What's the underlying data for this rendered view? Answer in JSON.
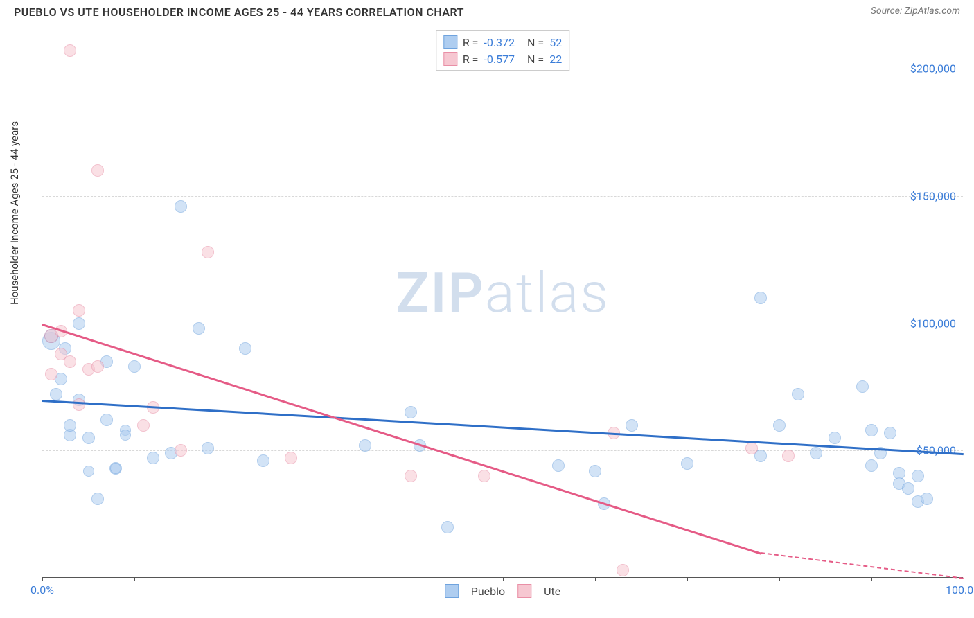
{
  "title": "PUEBLO VS UTE HOUSEHOLDER INCOME AGES 25 - 44 YEARS CORRELATION CHART",
  "source": "Source: ZipAtlas.com",
  "ylabel": "Householder Income Ages 25 - 44 years",
  "watermark_a": "ZIP",
  "watermark_b": "atlas",
  "chart": {
    "type": "scatter-correlation",
    "background_color": "#ffffff",
    "grid_color": "#d8d8d8",
    "axis_color": "#555555",
    "xlim": [
      0,
      100
    ],
    "ylim": [
      0,
      215000
    ],
    "xtick_positions": [
      0,
      10,
      20,
      30,
      40,
      50,
      60,
      70,
      80,
      90,
      100
    ],
    "xtick_labels_shown": {
      "0": "0.0%",
      "100": "100.0%"
    },
    "yticks": [
      50000,
      100000,
      150000,
      200000
    ],
    "ytick_labels": [
      "$50,000",
      "$100,000",
      "$150,000",
      "$200,000"
    ],
    "point_radius_min": 8,
    "point_radius_max": 14,
    "point_opacity": 0.55,
    "label_fontsize": 16,
    "label_color": "#3b7dd8",
    "title_fontsize": 16,
    "title_color": "#333333"
  },
  "series": [
    {
      "name": "Pueblo",
      "color_fill": "#aecdf0",
      "color_stroke": "#6fa3de",
      "line_color": "#2f6fc7",
      "R": "-0.372",
      "N": "52",
      "trend": {
        "x1": 0,
        "y1": 70000,
        "x2": 100,
        "y2": 49000
      },
      "points": [
        {
          "x": 1,
          "y": 93000,
          "r": 13
        },
        {
          "x": 1,
          "y": 95000,
          "r": 10
        },
        {
          "x": 1.5,
          "y": 72000,
          "r": 9
        },
        {
          "x": 2,
          "y": 78000,
          "r": 9
        },
        {
          "x": 2.5,
          "y": 90000,
          "r": 9
        },
        {
          "x": 3,
          "y": 56000,
          "r": 9
        },
        {
          "x": 3,
          "y": 60000,
          "r": 9
        },
        {
          "x": 4,
          "y": 100000,
          "r": 9
        },
        {
          "x": 4,
          "y": 70000,
          "r": 9
        },
        {
          "x": 5,
          "y": 55000,
          "r": 9
        },
        {
          "x": 5,
          "y": 42000,
          "r": 8
        },
        {
          "x": 6,
          "y": 31000,
          "r": 9
        },
        {
          "x": 7,
          "y": 85000,
          "r": 9
        },
        {
          "x": 7,
          "y": 62000,
          "r": 9
        },
        {
          "x": 8,
          "y": 43000,
          "r": 9
        },
        {
          "x": 8,
          "y": 43000,
          "r": 8
        },
        {
          "x": 9,
          "y": 58000,
          "r": 8
        },
        {
          "x": 9,
          "y": 56000,
          "r": 8
        },
        {
          "x": 10,
          "y": 83000,
          "r": 9
        },
        {
          "x": 12,
          "y": 47000,
          "r": 9
        },
        {
          "x": 14,
          "y": 49000,
          "r": 9
        },
        {
          "x": 15,
          "y": 146000,
          "r": 9
        },
        {
          "x": 17,
          "y": 98000,
          "r": 9
        },
        {
          "x": 18,
          "y": 51000,
          "r": 9
        },
        {
          "x": 22,
          "y": 90000,
          "r": 9
        },
        {
          "x": 24,
          "y": 46000,
          "r": 9
        },
        {
          "x": 35,
          "y": 52000,
          "r": 9
        },
        {
          "x": 40,
          "y": 65000,
          "r": 9
        },
        {
          "x": 41,
          "y": 52000,
          "r": 9
        },
        {
          "x": 44,
          "y": 20000,
          "r": 9
        },
        {
          "x": 56,
          "y": 44000,
          "r": 9
        },
        {
          "x": 60,
          "y": 42000,
          "r": 9
        },
        {
          "x": 61,
          "y": 29000,
          "r": 9
        },
        {
          "x": 64,
          "y": 60000,
          "r": 9
        },
        {
          "x": 70,
          "y": 45000,
          "r": 9
        },
        {
          "x": 78,
          "y": 110000,
          "r": 9
        },
        {
          "x": 78,
          "y": 48000,
          "r": 9
        },
        {
          "x": 80,
          "y": 60000,
          "r": 9
        },
        {
          "x": 82,
          "y": 72000,
          "r": 9
        },
        {
          "x": 84,
          "y": 49000,
          "r": 9
        },
        {
          "x": 86,
          "y": 55000,
          "r": 9
        },
        {
          "x": 89,
          "y": 75000,
          "r": 9
        },
        {
          "x": 90,
          "y": 44000,
          "r": 9
        },
        {
          "x": 90,
          "y": 58000,
          "r": 9
        },
        {
          "x": 91,
          "y": 49000,
          "r": 9
        },
        {
          "x": 92,
          "y": 57000,
          "r": 9
        },
        {
          "x": 93,
          "y": 37000,
          "r": 9
        },
        {
          "x": 93,
          "y": 41000,
          "r": 9
        },
        {
          "x": 94,
          "y": 35000,
          "r": 9
        },
        {
          "x": 95,
          "y": 30000,
          "r": 9
        },
        {
          "x": 95,
          "y": 40000,
          "r": 9
        },
        {
          "x": 96,
          "y": 31000,
          "r": 9
        }
      ]
    },
    {
      "name": "Ute",
      "color_fill": "#f6c7d1",
      "color_stroke": "#e98fa6",
      "line_color": "#e55b86",
      "R": "-0.577",
      "N": "22",
      "trend": {
        "x1": 0,
        "y1": 100000,
        "x2": 78,
        "y2": 10000,
        "dash_x2": 100,
        "dash_y2": -13000
      },
      "points": [
        {
          "x": 1,
          "y": 95000,
          "r": 10
        },
        {
          "x": 1,
          "y": 80000,
          "r": 9
        },
        {
          "x": 2,
          "y": 97000,
          "r": 9
        },
        {
          "x": 2,
          "y": 88000,
          "r": 9
        },
        {
          "x": 3,
          "y": 85000,
          "r": 9
        },
        {
          "x": 3,
          "y": 207000,
          "r": 9
        },
        {
          "x": 4,
          "y": 105000,
          "r": 9
        },
        {
          "x": 4,
          "y": 68000,
          "r": 9
        },
        {
          "x": 5,
          "y": 82000,
          "r": 9
        },
        {
          "x": 6,
          "y": 160000,
          "r": 9
        },
        {
          "x": 6,
          "y": 83000,
          "r": 9
        },
        {
          "x": 11,
          "y": 60000,
          "r": 9
        },
        {
          "x": 12,
          "y": 67000,
          "r": 9
        },
        {
          "x": 15,
          "y": 50000,
          "r": 9
        },
        {
          "x": 18,
          "y": 128000,
          "r": 9
        },
        {
          "x": 27,
          "y": 47000,
          "r": 9
        },
        {
          "x": 40,
          "y": 40000,
          "r": 9
        },
        {
          "x": 48,
          "y": 40000,
          "r": 9
        },
        {
          "x": 62,
          "y": 57000,
          "r": 9
        },
        {
          "x": 63,
          "y": 3000,
          "r": 9
        },
        {
          "x": 77,
          "y": 51000,
          "r": 9
        },
        {
          "x": 81,
          "y": 48000,
          "r": 9
        }
      ]
    }
  ],
  "legend_bottom": [
    "Pueblo",
    "Ute"
  ]
}
